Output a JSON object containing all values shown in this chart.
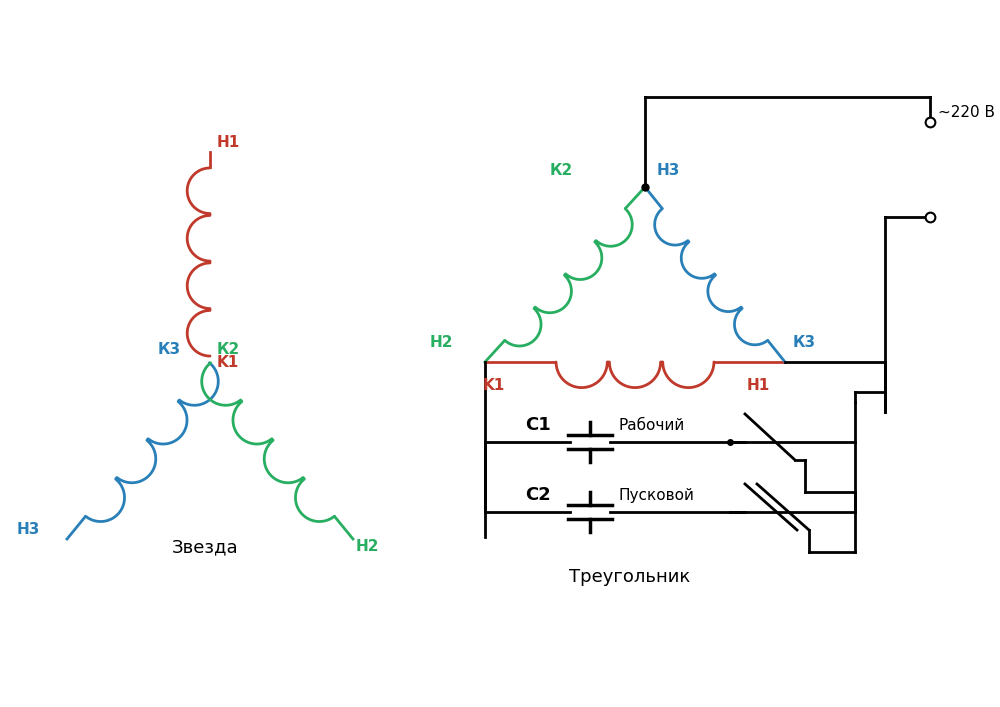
{
  "bg_color": "#ffffff",
  "red_color": "#c0392b",
  "green_color": "#27ae60",
  "blue_color": "#2980b9",
  "black_color": "#000000",
  "lw": 2.0,
  "title_zvezda": "Звезда",
  "title_treugolnik": "Треугольник",
  "label_220": "~220 В"
}
